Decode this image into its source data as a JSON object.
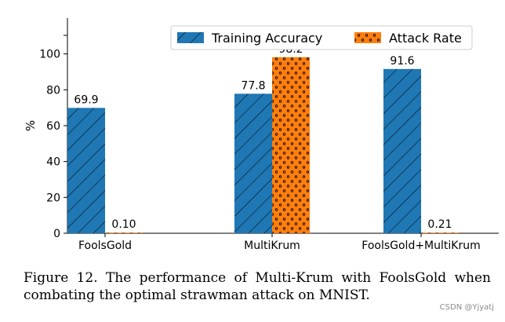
{
  "chart_data": {
    "type": "bar",
    "categories": [
      "FoolsGold",
      "MultiKrum",
      "FoolsGold+MultiKrum"
    ],
    "series": [
      {
        "name": "Training Accuracy",
        "values": [
          69.9,
          77.8,
          91.6
        ],
        "labels": [
          "69.9",
          "77.8",
          "91.6"
        ],
        "color": "#1f77b4",
        "pattern": "diagonal-hatch"
      },
      {
        "name": "Attack Rate",
        "values": [
          0.1,
          98.2,
          0.21
        ],
        "labels": [
          "0.10",
          "98.2",
          "0.21"
        ],
        "color": "#ff7f0e",
        "pattern": "dots"
      }
    ],
    "ylabel": "%",
    "xlabel": "",
    "ylim": [
      0,
      120
    ],
    "yticks": [
      0,
      20,
      40,
      60,
      80,
      100
    ],
    "ytick_labels": [
      "0",
      "20",
      "40",
      "60",
      "80",
      "100"
    ],
    "legend_position": "top-right"
  },
  "caption": "Figure 12. The performance of Multi-Krum with FoolsGold when combating the optimal strawman attack on MNIST.",
  "watermark": "CSDN @Yjyatj"
}
